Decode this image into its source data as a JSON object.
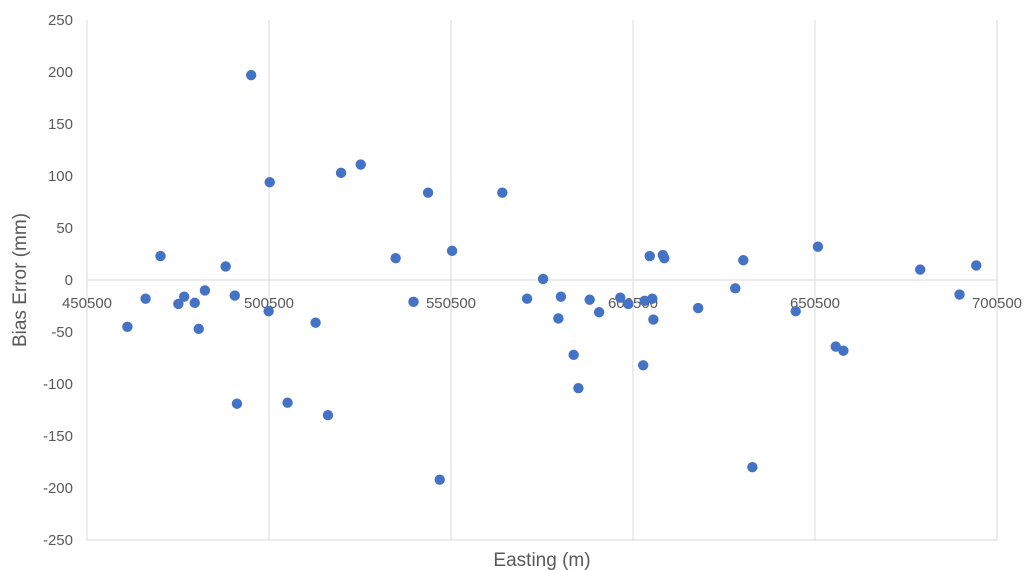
{
  "chart_data": {
    "type": "scatter",
    "title": "",
    "xlabel": "Easting (m)",
    "ylabel": "Bias Error (mm)",
    "xlim": [
      450500,
      700500
    ],
    "ylim": [
      -250,
      250
    ],
    "x_ticks": [
      450500,
      500500,
      550500,
      600500,
      650500,
      700500
    ],
    "x_tick_labels": [
      "450500",
      "500500",
      "550500",
      "600500",
      "650500",
      "700500"
    ],
    "y_ticks": [
      -250,
      -200,
      -150,
      -100,
      -50,
      0,
      50,
      100,
      150,
      200,
      250
    ],
    "y_tick_labels": [
      "-250",
      "-200",
      "-150",
      "-100",
      "-50",
      "0",
      "50",
      "100",
      "150",
      "200",
      "250"
    ],
    "grid": "vertical-major",
    "legend": "none",
    "marker_color": "#4472c4",
    "series": [
      {
        "points": [
          {
            "x": 461600,
            "y": -45
          },
          {
            "x": 466600,
            "y": -18
          },
          {
            "x": 470700,
            "y": 23
          },
          {
            "x": 475600,
            "y": -23
          },
          {
            "x": 477200,
            "y": -16
          },
          {
            "x": 480100,
            "y": -22
          },
          {
            "x": 481200,
            "y": -47
          },
          {
            "x": 482900,
            "y": -10
          },
          {
            "x": 488600,
            "y": 13
          },
          {
            "x": 491100,
            "y": -15
          },
          {
            "x": 491700,
            "y": -119
          },
          {
            "x": 495600,
            "y": 197
          },
          {
            "x": 500400,
            "y": -30
          },
          {
            "x": 500700,
            "y": 94
          },
          {
            "x": 505600,
            "y": -118
          },
          {
            "x": 513300,
            "y": -41
          },
          {
            "x": 516700,
            "y": -130
          },
          {
            "x": 520300,
            "y": 103
          },
          {
            "x": 525700,
            "y": 111
          },
          {
            "x": 535300,
            "y": 21
          },
          {
            "x": 540200,
            "y": -21
          },
          {
            "x": 544200,
            "y": 84
          },
          {
            "x": 547400,
            "y": -192
          },
          {
            "x": 550800,
            "y": 28
          },
          {
            "x": 564600,
            "y": 84
          },
          {
            "x": 571400,
            "y": -18
          },
          {
            "x": 575800,
            "y": 1
          },
          {
            "x": 580000,
            "y": -37
          },
          {
            "x": 580700,
            "y": -16
          },
          {
            "x": 584200,
            "y": -72
          },
          {
            "x": 585500,
            "y": -104
          },
          {
            "x": 588600,
            "y": -19
          },
          {
            "x": 591200,
            "y": -31
          },
          {
            "x": 597000,
            "y": -17
          },
          {
            "x": 599200,
            "y": -23
          },
          {
            "x": 603300,
            "y": -82
          },
          {
            "x": 603700,
            "y": -20
          },
          {
            "x": 605100,
            "y": 23
          },
          {
            "x": 605800,
            "y": -18
          },
          {
            "x": 606100,
            "y": -38
          },
          {
            "x": 608700,
            "y": 24
          },
          {
            "x": 609100,
            "y": 21
          },
          {
            "x": 618400,
            "y": -27
          },
          {
            "x": 628600,
            "y": -8
          },
          {
            "x": 630800,
            "y": 19
          },
          {
            "x": 633300,
            "y": -180
          },
          {
            "x": 645200,
            "y": -30
          },
          {
            "x": 651300,
            "y": 32
          },
          {
            "x": 656200,
            "y": -64
          },
          {
            "x": 658300,
            "y": -68
          },
          {
            "x": 679400,
            "y": 10
          },
          {
            "x": 690200,
            "y": -14
          },
          {
            "x": 694800,
            "y": 14
          }
        ]
      }
    ]
  }
}
